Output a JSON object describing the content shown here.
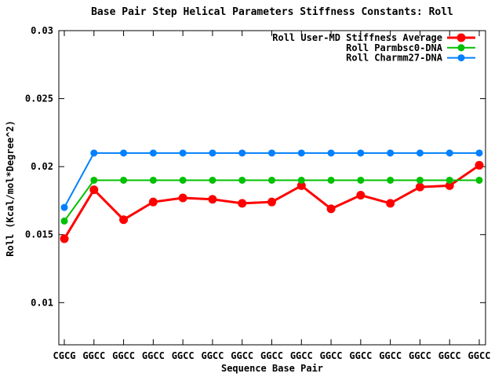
{
  "window": {
    "background": "#ffffff",
    "foreground": "#000000"
  },
  "chart_data": {
    "type": "line",
    "title": "Base Pair Step Helical Parameters Stiffness Constants: Roll",
    "xlabel": "Sequence Base Pair",
    "ylabel": "Roll (Kcal/mol*Degree^2)",
    "categories": [
      "CGCG",
      "GGCC",
      "GGCC",
      "GGCC",
      "GGCC",
      "GGCC",
      "GGCC",
      "GGCC",
      "GGCC",
      "GGCC",
      "GGCC",
      "GGCC",
      "GGCC",
      "GGCC",
      "GGCC"
    ],
    "yticks": [
      0.03,
      0.025,
      0.02,
      0.015,
      0.01
    ],
    "ytick_labels": [
      "0.03",
      "0.025",
      "0.02",
      "0.015",
      "0.01"
    ],
    "ylim": [
      0.0069,
      0.03
    ],
    "grid": false,
    "legend_position": "top-right-inside",
    "series": [
      {
        "name": "Roll User-MD Stiffness Average",
        "color": "#ff0000",
        "line_width": 3,
        "marker": "filled-circle",
        "marker_radius": 5.5,
        "values": [
          0.0147,
          0.0183,
          0.0161,
          0.0174,
          0.0177,
          0.0176,
          0.0173,
          0.0174,
          0.0186,
          0.0169,
          0.0179,
          0.0173,
          0.0185,
          0.0186,
          0.0201
        ]
      },
      {
        "name": "Roll Parmbsc0-DNA",
        "color": "#00c000",
        "line_width": 2,
        "marker": "filled-circle",
        "marker_radius": 4.5,
        "values": [
          0.016,
          0.019,
          0.019,
          0.019,
          0.019,
          0.019,
          0.019,
          0.019,
          0.019,
          0.019,
          0.019,
          0.019,
          0.019,
          0.019,
          0.019
        ]
      },
      {
        "name": "Roll Charmm27-DNA",
        "color": "#0080ff",
        "line_width": 2,
        "marker": "filled-circle",
        "marker_radius": 4.5,
        "values": [
          0.017,
          0.021,
          0.021,
          0.021,
          0.021,
          0.021,
          0.021,
          0.021,
          0.021,
          0.021,
          0.021,
          0.021,
          0.021,
          0.021,
          0.021
        ]
      }
    ]
  }
}
